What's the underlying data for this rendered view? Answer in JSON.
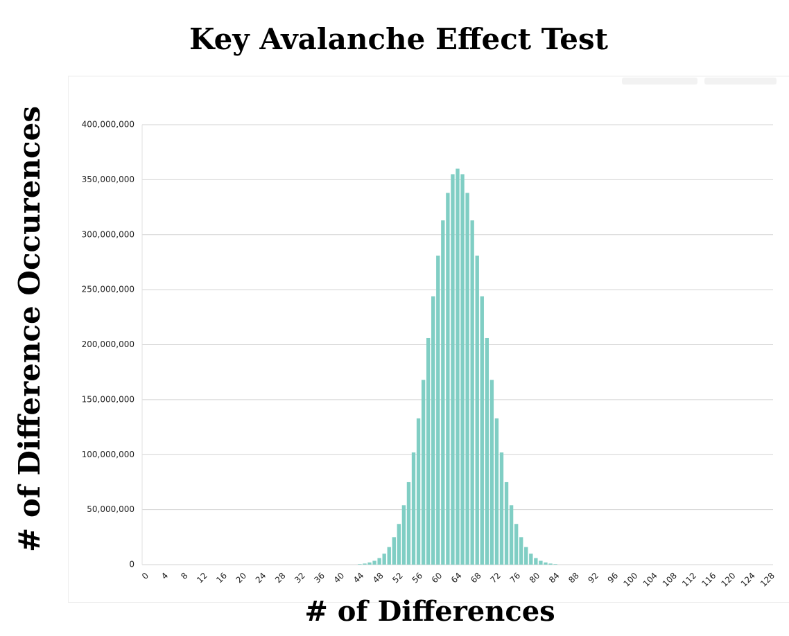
{
  "chart_data": {
    "type": "bar",
    "title": "Key Avalanche Effect Test",
    "x_label": "# of Differences",
    "y_label": "# of Difference Occurences",
    "categories": [
      "0",
      null,
      null,
      null,
      "4",
      null,
      null,
      null,
      "8",
      null,
      null,
      null,
      "12",
      null,
      null,
      null,
      "16",
      null,
      null,
      null,
      "20",
      null,
      null,
      null,
      "24",
      null,
      null,
      null,
      "28",
      null,
      null,
      null,
      "32",
      null,
      null,
      null,
      "36",
      null,
      null,
      null,
      "40",
      null,
      null,
      null,
      "44",
      null,
      null,
      null,
      "48",
      null,
      null,
      null,
      "52",
      null,
      null,
      null,
      "56",
      null,
      null,
      null,
      "60",
      null,
      null,
      null,
      "64",
      null,
      null,
      null,
      "68",
      null,
      null,
      null,
      "72",
      null,
      null,
      null,
      "76",
      null,
      null,
      null,
      "80",
      null,
      null,
      null,
      "84",
      null,
      null,
      null,
      "88",
      null,
      null,
      null,
      "92",
      null,
      null,
      null,
      "96",
      null,
      null,
      null,
      "100",
      null,
      null,
      null,
      "104",
      null,
      null,
      null,
      "108",
      null,
      null,
      null,
      "112",
      null,
      null,
      null,
      "116",
      null,
      null,
      null,
      "120",
      null,
      null,
      null,
      "124",
      null,
      null,
      null,
      "128"
    ],
    "values": [
      0,
      0,
      0,
      0,
      0,
      0,
      0,
      0,
      0,
      0,
      0,
      0,
      0,
      0,
      0,
      0,
      0,
      0,
      0,
      0,
      0,
      0,
      0,
      0,
      0,
      0,
      0,
      0,
      0,
      0,
      0,
      0,
      0,
      0,
      0,
      0,
      0,
      0,
      0,
      0,
      0,
      0,
      0,
      0,
      500000,
      1000000,
      2000000,
      3500000,
      6000000,
      10000000,
      16000000,
      25000000,
      37000000,
      54000000,
      75000000,
      102000000,
      133000000,
      168000000,
      206000000,
      244000000,
      281000000,
      313000000,
      338000000,
      355000000,
      360000000,
      355000000,
      338000000,
      313000000,
      281000000,
      244000000,
      206000000,
      168000000,
      133000000,
      102000000,
      75000000,
      54000000,
      37000000,
      25000000,
      16000000,
      10000000,
      6000000,
      3500000,
      2000000,
      1000000,
      500000,
      0,
      0,
      0,
      0,
      0,
      0,
      0,
      0,
      0,
      0,
      0,
      0,
      0,
      0,
      0,
      0,
      0,
      0,
      0,
      0,
      0,
      0,
      0,
      0,
      0,
      0,
      0,
      0,
      0,
      0,
      0,
      0,
      0,
      0,
      0,
      0,
      0,
      0,
      0,
      0,
      0,
      0,
      0,
      0
    ],
    "color": "#80cec4",
    "ylim": [
      0,
      400000000
    ],
    "yticks": [
      0,
      {
        "value": 50000000,
        "label": "50,000,000"
      },
      {
        "value": 100000000,
        "label": "100,000,000"
      },
      {
        "value": 150000000,
        "label": "150,000,000"
      },
      {
        "value": 200000000,
        "label": "200,000,000"
      },
      {
        "value": 250000000,
        "label": "250,000,000"
      },
      {
        "value": 300000000,
        "label": "300,000,000"
      },
      {
        "value": 350000000,
        "label": "350,000,000"
      },
      {
        "value": 400000000,
        "label": "400,000,000"
      }
    ],
    "grid": true
  }
}
